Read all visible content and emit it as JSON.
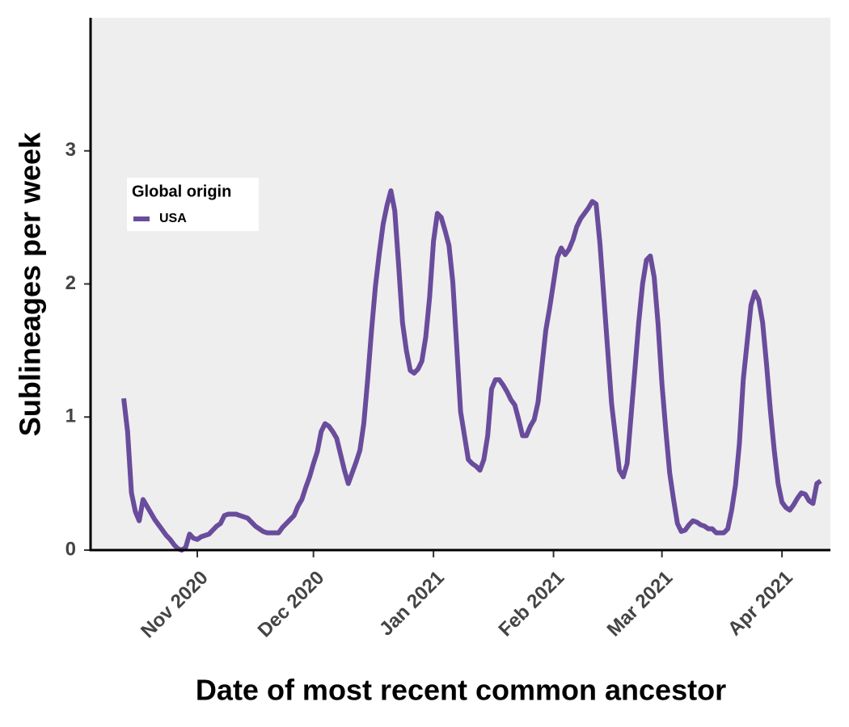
{
  "chart_data": {
    "type": "line",
    "xlabel": "Date of most recent common ancestor",
    "ylabel": "Sublineages per week",
    "legend_title": "Global origin",
    "legend_position": "left",
    "background": "#eeeeee",
    "categories": [
      null,
      null,
      null,
      null,
      null,
      null,
      null,
      null,
      null,
      null,
      null,
      null,
      null,
      null,
      null,
      null,
      null,
      null,
      null,
      "Nov 2020",
      null,
      null,
      null,
      null,
      null,
      null,
      null,
      null,
      null,
      null,
      null,
      null,
      null,
      null,
      null,
      null,
      null,
      null,
      null,
      null,
      null,
      null,
      null,
      null,
      null,
      null,
      null,
      null,
      null,
      "Dec 2020",
      null,
      null,
      null,
      null,
      null,
      null,
      null,
      null,
      null,
      null,
      null,
      null,
      null,
      null,
      null,
      null,
      null,
      null,
      null,
      null,
      null,
      null,
      null,
      null,
      null,
      null,
      null,
      null,
      null,
      null,
      "Jan 2021",
      null,
      null,
      null,
      null,
      null,
      null,
      null,
      null,
      null,
      null,
      null,
      null,
      null,
      null,
      null,
      null,
      null,
      null,
      null,
      null,
      null,
      null,
      null,
      null,
      null,
      null,
      null,
      null,
      null,
      null,
      "Feb 2021",
      null,
      null,
      null,
      null,
      null,
      null,
      null,
      null,
      null,
      null,
      null,
      null,
      null,
      null,
      null,
      null,
      null,
      null,
      null,
      null,
      null,
      null,
      null,
      null,
      null,
      null,
      null,
      "Mar 2021",
      null,
      null,
      null,
      null,
      null,
      null,
      null,
      null,
      null,
      null,
      null,
      null,
      null,
      null,
      null,
      null,
      null,
      null,
      null,
      null,
      null,
      null,
      null,
      null,
      null,
      null,
      null,
      null,
      null,
      null,
      "Apr 2021",
      null,
      null,
      null,
      null,
      null,
      null,
      null,
      null,
      null,
      null
    ],
    "series": [
      {
        "name": "USA",
        "color": "#6a4c9c",
        "values": [
          1.14,
          0.89,
          0.43,
          0.29,
          0.22,
          0.38,
          0.33,
          0.28,
          0.23,
          0.19,
          0.15,
          0.11,
          0.08,
          0.04,
          0.01,
          0,
          0.02,
          0.12,
          0.09,
          0.08,
          0.1,
          0.11,
          0.12,
          0.15,
          0.18,
          0.2,
          0.26,
          0.27,
          0.27,
          0.27,
          0.26,
          0.25,
          0.24,
          0.21,
          0.18,
          0.16,
          0.14,
          0.13,
          0.13,
          0.13,
          0.13,
          0.17,
          0.2,
          0.23,
          0.26,
          0.33,
          0.38,
          0.47,
          0.55,
          0.65,
          0.74,
          0.89,
          0.95,
          0.93,
          0.89,
          0.84,
          0.72,
          0.6,
          0.5,
          0.58,
          0.66,
          0.75,
          0.95,
          1.28,
          1.65,
          1.98,
          2.23,
          2.45,
          2.59,
          2.7,
          2.55,
          2.14,
          1.71,
          1.5,
          1.35,
          1.33,
          1.36,
          1.42,
          1.6,
          1.9,
          2.32,
          2.53,
          2.5,
          2.4,
          2.29,
          2.01,
          1.53,
          1.04,
          0.86,
          0.68,
          0.65,
          0.63,
          0.6,
          0.68,
          0.86,
          1.21,
          1.28,
          1.28,
          1.24,
          1.19,
          1.13,
          1.09,
          0.98,
          0.86,
          0.86,
          0.93,
          0.98,
          1.11,
          1.38,
          1.65,
          1.82,
          2.01,
          2.2,
          2.27,
          2.22,
          2.26,
          2.33,
          2.43,
          2.49,
          2.53,
          2.57,
          2.62,
          2.6,
          2.3,
          1.9,
          1.5,
          1.1,
          0.85,
          0.6,
          0.55,
          0.65,
          1.0,
          1.35,
          1.71,
          2.0,
          2.18,
          2.21,
          2.05,
          1.7,
          1.25,
          0.9,
          0.58,
          0.38,
          0.2,
          0.14,
          0.15,
          0.19,
          0.22,
          0.21,
          0.19,
          0.18,
          0.16,
          0.16,
          0.13,
          0.13,
          0.13,
          0.16,
          0.3,
          0.49,
          0.8,
          1.28,
          1.56,
          1.84,
          1.94,
          1.88,
          1.71,
          1.4,
          1.05,
          0.75,
          0.5,
          0.36,
          0.32,
          0.3,
          0.34,
          0.39,
          0.43,
          0.42,
          0.37,
          0.35,
          0.5,
          0.52
        ]
      }
    ],
    "ylim": [
      0,
      4
    ],
    "yticks": [
      0,
      1,
      2,
      3
    ]
  }
}
